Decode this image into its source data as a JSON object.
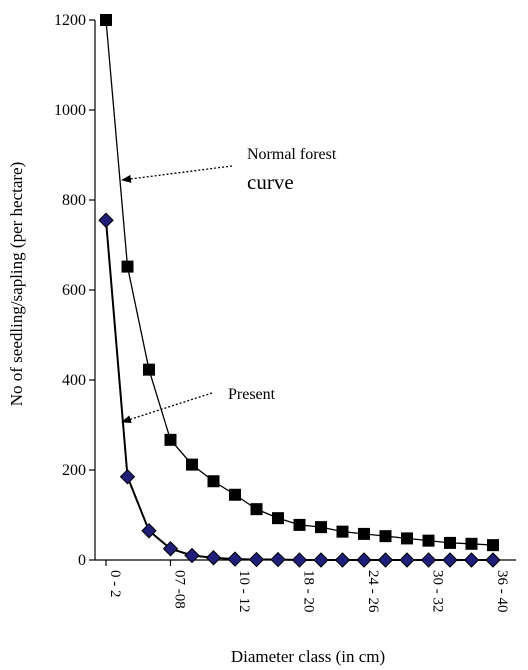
{
  "chart_data": {
    "type": "line",
    "title": "",
    "xlabel": "Diameter class (in cm)",
    "ylabel": "No of seedling/sapling (per hectare)",
    "ylim": [
      0,
      1200
    ],
    "yticks": [
      0,
      200,
      400,
      600,
      800,
      1000,
      1200
    ],
    "x_tick_labels": [
      "0 - 2",
      "07 -08",
      "10 - 12",
      "18 - 20",
      "24 - 26",
      "30 - 32",
      "36 - 40"
    ],
    "x_tick_positions": [
      0,
      3,
      6,
      9,
      12,
      15,
      18
    ],
    "grid": false,
    "legend": "none",
    "series": [
      {
        "marker": "square",
        "color": "#000000",
        "x": [
          0,
          1,
          2,
          3,
          4,
          5,
          6,
          7,
          8,
          9,
          10,
          11,
          12,
          13,
          14,
          15,
          16,
          17,
          18
        ],
        "values": [
          1200,
          652,
          423,
          267,
          212,
          175,
          145,
          113,
          93,
          78,
          73,
          63,
          58,
          53,
          48,
          43,
          38,
          36,
          33
        ]
      },
      {
        "marker": "diamond",
        "color": "#1f1f7a",
        "x": [
          0,
          1,
          2,
          3,
          4,
          5,
          6,
          7,
          8,
          9,
          10,
          11,
          12,
          13,
          14,
          15,
          16,
          17,
          18
        ],
        "values": [
          755,
          185,
          65,
          25,
          10,
          5,
          2,
          1,
          1,
          0,
          0,
          0,
          0,
          0,
          0,
          0,
          0,
          0,
          0
        ]
      }
    ],
    "annotations": [
      {
        "lines": [
          "Normal forest",
          "curve"
        ],
        "points_to_series": 0
      },
      {
        "lines": [
          "Present"
        ],
        "points_to_series": 1
      }
    ]
  }
}
